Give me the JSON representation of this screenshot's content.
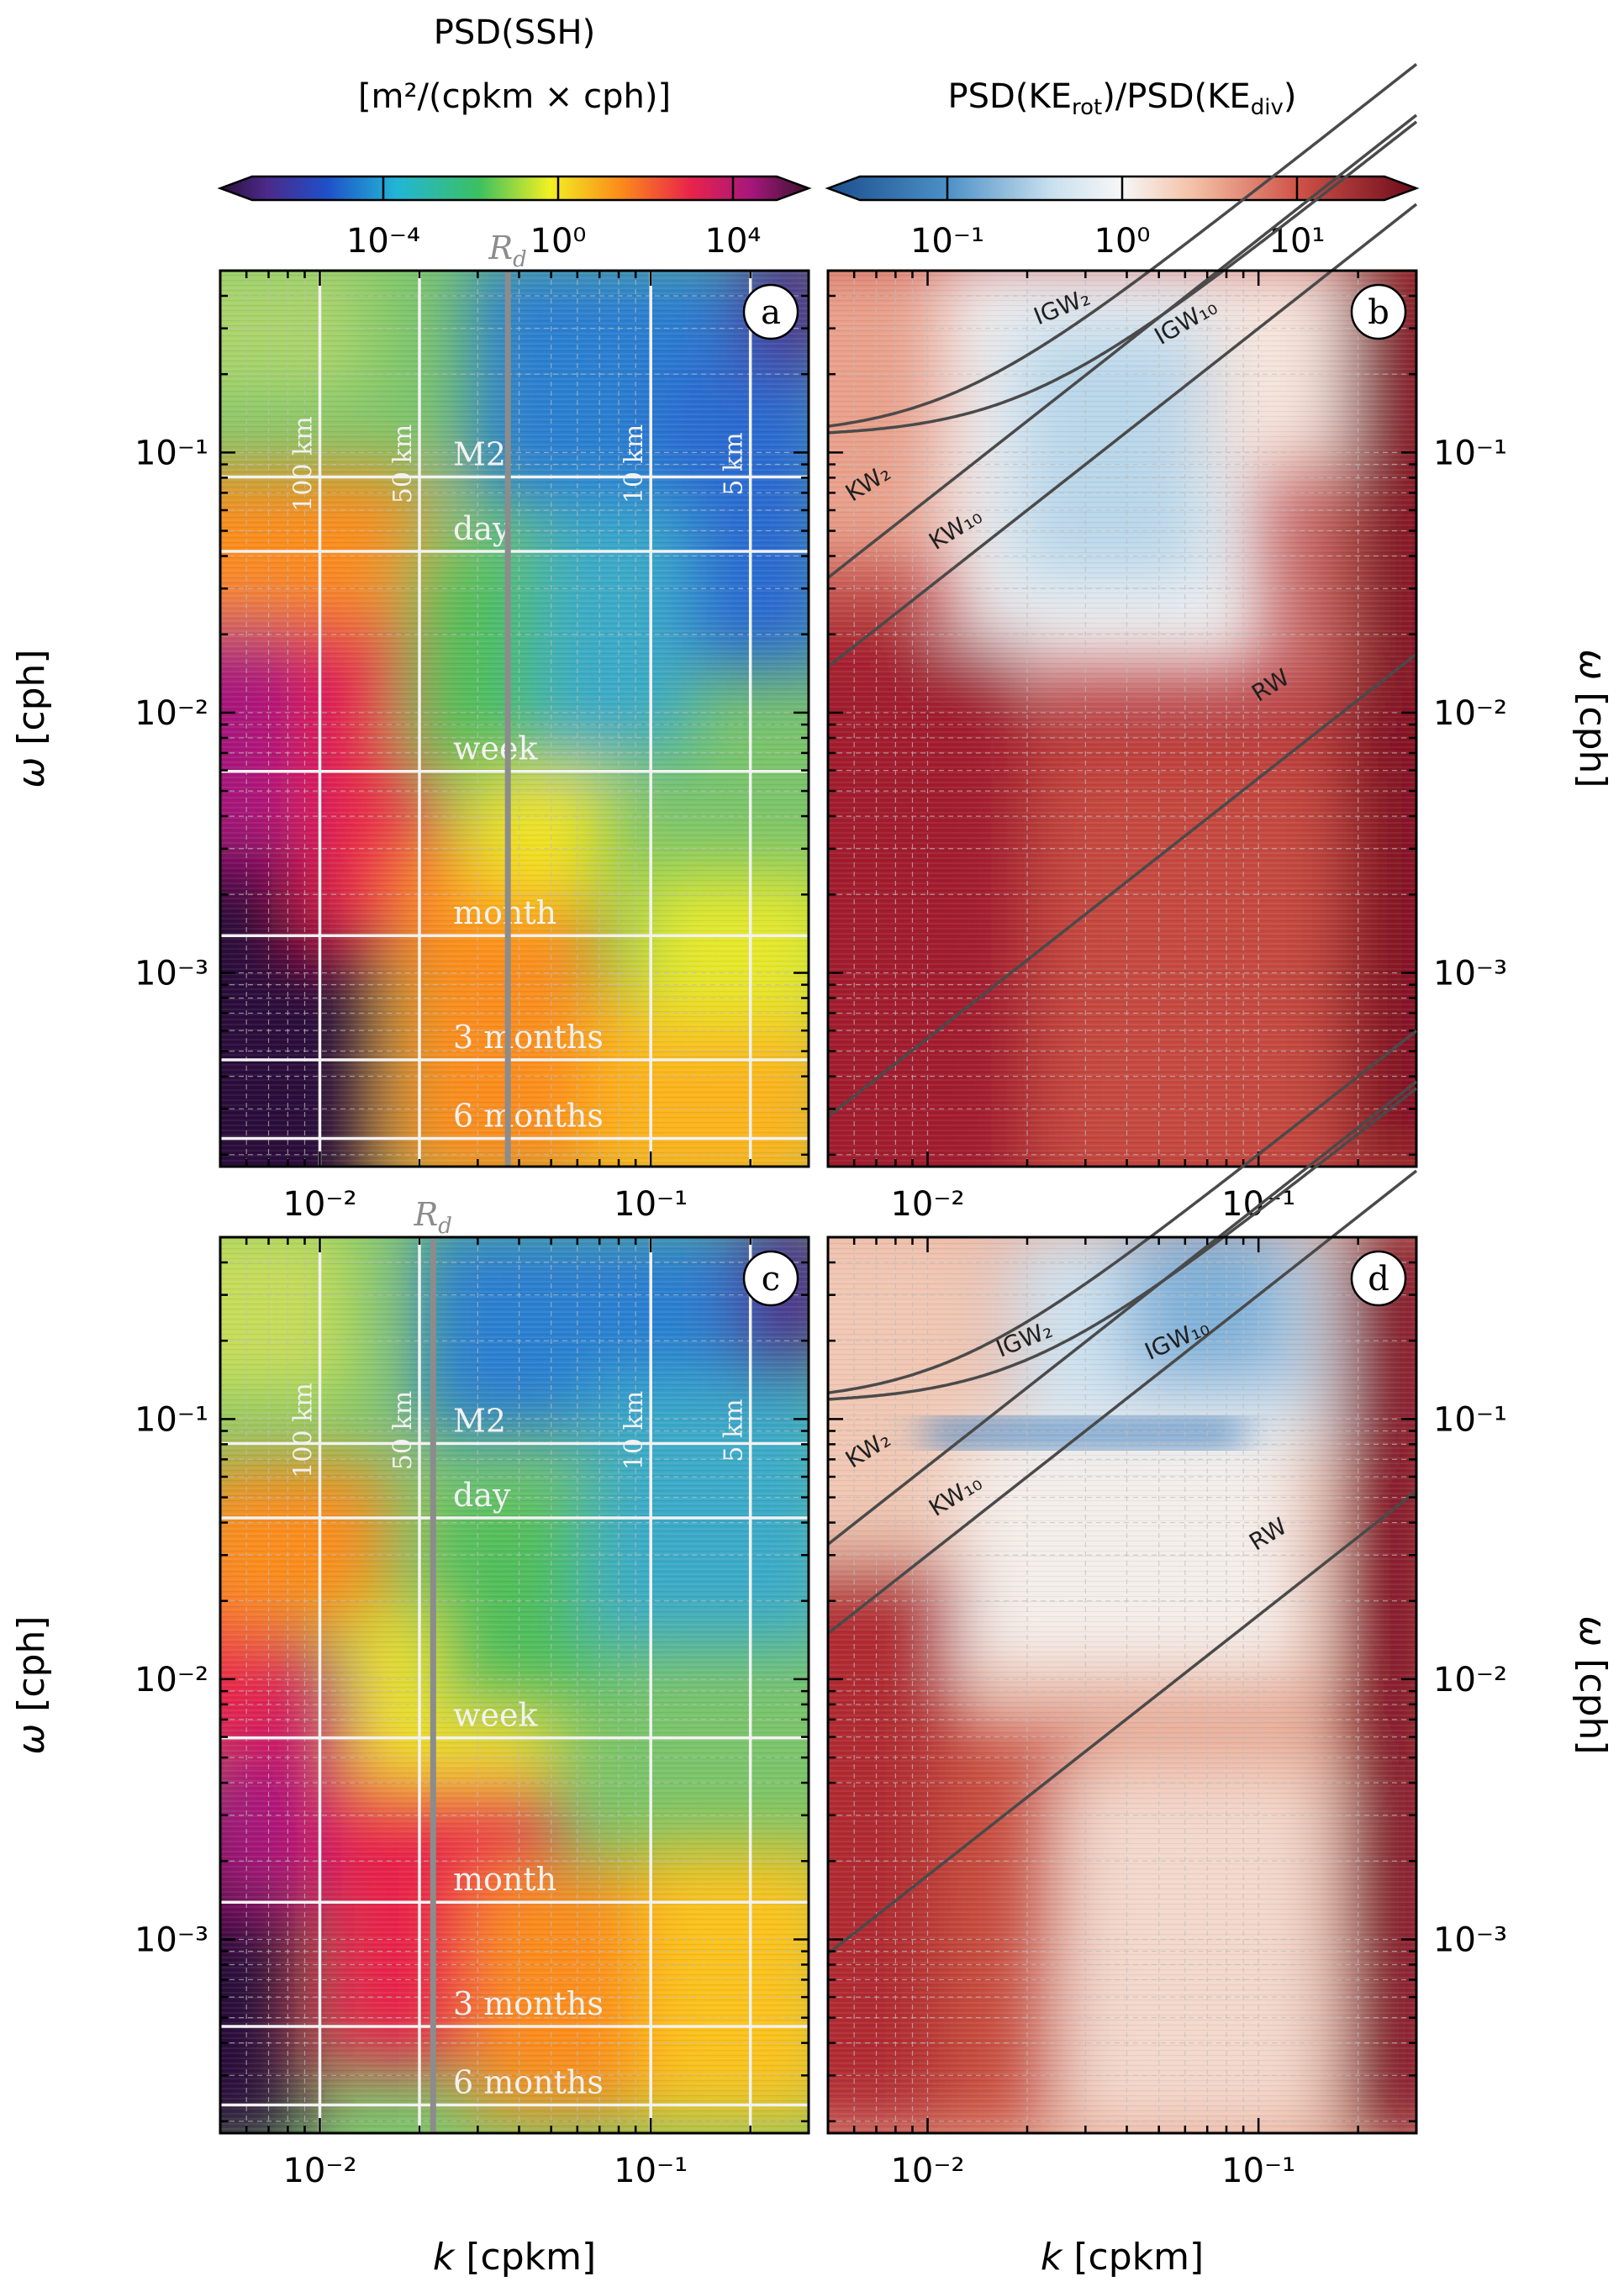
{
  "colors": {
    "rd_line": "#8c8c8c",
    "ref_line": "#f2f2f2",
    "dispersion_line": "#4a4a4a",
    "frame": "#000000"
  },
  "colorbars": {
    "ssh": {
      "title_line1": "PSD(SSH)",
      "title_line2": "[m²/(cpkm × cph)]",
      "ticks": [
        {
          "value": -4,
          "label": "10⁻⁴"
        },
        {
          "value": 0,
          "label": "10⁰"
        },
        {
          "value": 4,
          "label": "10⁴"
        }
      ],
      "range_log10": [
        -7,
        5
      ],
      "colormap": "spectral (purple-blue-green-yellow-red-magenta-darkpurple)"
    },
    "ratio": {
      "title": "PSD(KE_rot)/PSD(KE_div)",
      "title_main_1": "PSD(KE",
      "title_sub_1": "rot",
      "title_main_2": ")/PSD(KE",
      "title_sub_2": "div",
      "title_main_3": ")",
      "ticks": [
        {
          "value": -1,
          "label": "10⁻¹"
        },
        {
          "value": 0,
          "label": "10⁰"
        },
        {
          "value": 1,
          "label": "10¹"
        }
      ],
      "range_log10": [
        -1.5,
        1.5
      ],
      "colormap": "RdBu_r"
    }
  },
  "axes": {
    "xlabel": "k [cpkm]",
    "ylabel": "ω [cph]",
    "x_ticks": [
      {
        "value": 0.01,
        "label": "10⁻²"
      },
      {
        "value": 0.1,
        "label": "10⁻¹"
      }
    ],
    "y_ticks": [
      {
        "value": 0.1,
        "label": "10⁻¹"
      },
      {
        "value": 0.01,
        "label": "10⁻²"
      },
      {
        "value": 0.001,
        "label": "10⁻³"
      }
    ],
    "xlim": [
      0.005,
      0.3
    ],
    "ylim": [
      0.00018,
      0.5
    ],
    "xscale": "log",
    "yscale": "log",
    "grid": "dashed"
  },
  "chart_data": [
    {
      "panel": "a",
      "type": "heatmap",
      "quantity": "PSD(SSH)",
      "rd_label": "R_d",
      "rd_k": 0.037,
      "vertical_lines": [
        {
          "label": "100 km",
          "k": 0.01
        },
        {
          "label": "50 km",
          "k": 0.02
        },
        {
          "label": "10 km",
          "k": 0.1
        },
        {
          "label": "5 km",
          "k": 0.2
        }
      ],
      "horizontal_lines": [
        {
          "label": "M2",
          "omega": 0.0805
        },
        {
          "label": "day",
          "omega": 0.0417
        },
        {
          "label": "week",
          "omega": 0.00595
        },
        {
          "label": "month",
          "omega": 0.00139
        },
        {
          "label": "3 months",
          "omega": 0.000463
        },
        {
          "label": "6 months",
          "omega": 0.000231
        }
      ]
    },
    {
      "panel": "b",
      "type": "heatmap",
      "quantity": "PSD(KE_rot)/PSD(KE_div)",
      "curves": [
        {
          "label": "IGW₂",
          "kind": "igw",
          "omega0": 0.115,
          "slope": 2.7
        },
        {
          "label": "IGW₁₀",
          "kind": "igw",
          "omega0": 0.115,
          "slope": 4.5
        },
        {
          "label": "KW₂",
          "kind": "kw",
          "omega_at_k_0_005": 0.033
        },
        {
          "label": "KW₁₀",
          "kind": "kw",
          "omega_at_k_0_005": 0.015
        },
        {
          "label": "RW",
          "kind": "rw",
          "omega_at_k_0_005": 0.00028
        }
      ]
    },
    {
      "panel": "c",
      "type": "heatmap",
      "quantity": "PSD(SSH)",
      "rd_label": "R_d",
      "rd_k": 0.022,
      "vertical_lines": [
        {
          "label": "100 km",
          "k": 0.01
        },
        {
          "label": "50 km",
          "k": 0.02
        },
        {
          "label": "10 km",
          "k": 0.1
        },
        {
          "label": "5 km",
          "k": 0.2
        }
      ],
      "horizontal_lines": [
        {
          "label": "M2",
          "omega": 0.0805
        },
        {
          "label": "day",
          "omega": 0.0417
        },
        {
          "label": "week",
          "omega": 0.00595
        },
        {
          "label": "month",
          "omega": 0.00139
        },
        {
          "label": "3 months",
          "omega": 0.000463
        },
        {
          "label": "6 months",
          "omega": 0.000231
        }
      ]
    },
    {
      "panel": "d",
      "type": "heatmap",
      "quantity": "PSD(KE_rot)/PSD(KE_div)",
      "curves": [
        {
          "label": "IGW₂",
          "kind": "igw",
          "omega0": 0.115,
          "slope": 2.7
        },
        {
          "label": "IGW₁₀",
          "kind": "igw",
          "omega0": 0.115,
          "slope": 4.5
        },
        {
          "label": "KW₂",
          "kind": "kw",
          "omega_at_k_0_005": 0.033
        },
        {
          "label": "KW₁₀",
          "kind": "kw",
          "omega_at_k_0_005": 0.015
        },
        {
          "label": "RW",
          "kind": "rw",
          "omega_at_k_0_005": 0.00088
        }
      ]
    }
  ]
}
